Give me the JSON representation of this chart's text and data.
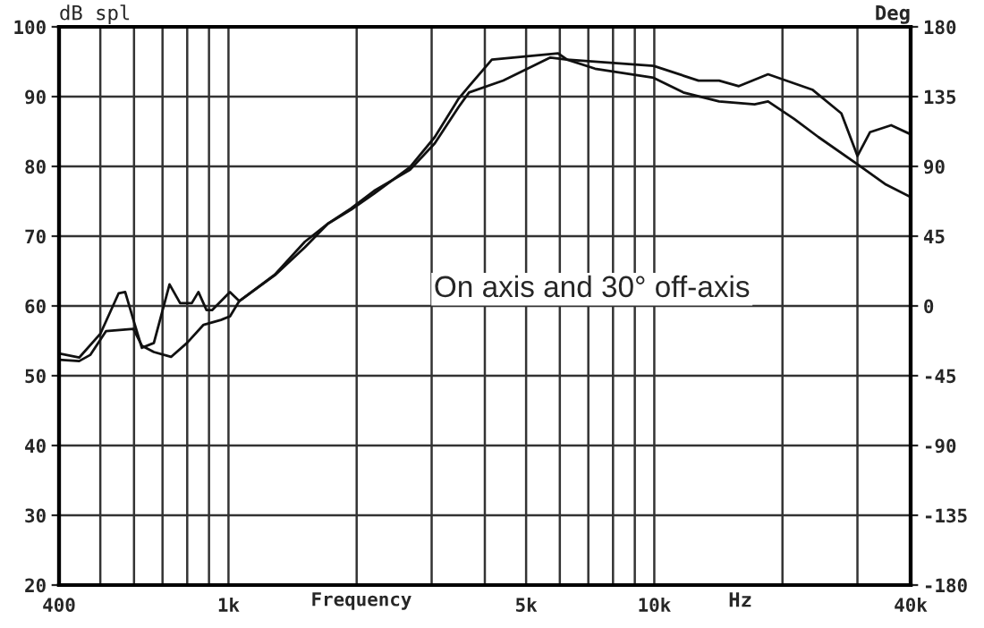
{
  "chart_data": {
    "type": "line",
    "ylabel": "dB spl",
    "y2label": "Deg",
    "xlabel": "Frequency",
    "annotations": [
      "On axis and 30° off-axis",
      "Hz"
    ],
    "log": "x",
    "grid": true,
    "line_style": "solid",
    "marker": "none",
    "xlim": [
      400,
      40000
    ],
    "xticks": [
      {
        "value": 400,
        "label": "400"
      },
      {
        "value": 500,
        "label": null
      },
      {
        "value": 600,
        "label": null
      },
      {
        "value": 700,
        "label": null
      },
      {
        "value": 800,
        "label": null
      },
      {
        "value": 900,
        "label": null
      },
      {
        "value": 1000,
        "label": "1k"
      },
      {
        "value": 2000,
        "label": null
      },
      {
        "value": 3000,
        "label": null
      },
      {
        "value": 4000,
        "label": null
      },
      {
        "value": 5000,
        "label": "5k"
      },
      {
        "value": 6000,
        "label": null
      },
      {
        "value": 7000,
        "label": null
      },
      {
        "value": 8000,
        "label": null
      },
      {
        "value": 9000,
        "label": null
      },
      {
        "value": 10000,
        "label": "10k"
      },
      {
        "value": 20000,
        "label": null
      },
      {
        "value": 30000,
        "label": null
      },
      {
        "value": 40000,
        "label": "40k"
      }
    ],
    "ylim": [
      20,
      100
    ],
    "yticks": [
      20,
      30,
      40,
      50,
      60,
      70,
      80,
      90,
      100
    ],
    "y2lim": [
      -180,
      180
    ],
    "y2ticks": [
      -180,
      -135,
      -90,
      -45,
      0,
      45,
      90,
      135,
      180
    ],
    "series": [
      {
        "color": "#111111",
        "x": [
          400,
          446,
          500,
          552,
          572,
          600,
          626,
          668,
          727,
          770,
          820,
          850,
          888,
          915,
          1008,
          1060,
          1285,
          1511,
          1713,
          1941,
          2199,
          2668,
          3051,
          3470,
          3672,
          4155,
          5946,
          6240,
          9960,
          12700,
          14200,
          15800,
          18500,
          23500,
          27500,
          30000,
          32100,
          36000,
          40000
        ],
        "values": [
          53.2,
          52.6,
          56.0,
          61.8,
          62.0,
          57.7,
          54.0,
          54.7,
          63.1,
          60.4,
          60.4,
          62.0,
          59.4,
          59.4,
          62.0,
          60.7,
          64.4,
          68.4,
          71.8,
          73.8,
          76.1,
          79.9,
          84.2,
          89.7,
          91.5,
          95.3,
          96.2,
          95.3,
          94.4,
          92.3,
          92.3,
          91.5,
          93.2,
          91.0,
          87.6,
          81.5,
          84.9,
          85.9,
          84.6
        ]
      },
      {
        "color": "#111111",
        "x": [
          400,
          446,
          474,
          516,
          598,
          626,
          668,
          733,
          799,
          874,
          960,
          1008,
          1060,
          1285,
          1511,
          1713,
          1941,
          2199,
          2668,
          3051,
          3470,
          3672,
          4420,
          5700,
          6240,
          7260,
          9960,
          11700,
          14200,
          17200,
          18500,
          21300,
          24300,
          30000,
          35000,
          40000
        ],
        "values": [
          52.3,
          52.1,
          53.0,
          56.4,
          56.7,
          54.3,
          53.4,
          52.7,
          54.7,
          57.3,
          58.0,
          58.5,
          60.7,
          64.5,
          69.2,
          71.8,
          74.0,
          76.5,
          79.5,
          83.3,
          88.5,
          90.6,
          92.3,
          95.6,
          95.3,
          94.0,
          92.7,
          90.6,
          89.3,
          88.9,
          89.3,
          86.8,
          84.2,
          80.3,
          77.4,
          75.6
        ]
      }
    ]
  }
}
